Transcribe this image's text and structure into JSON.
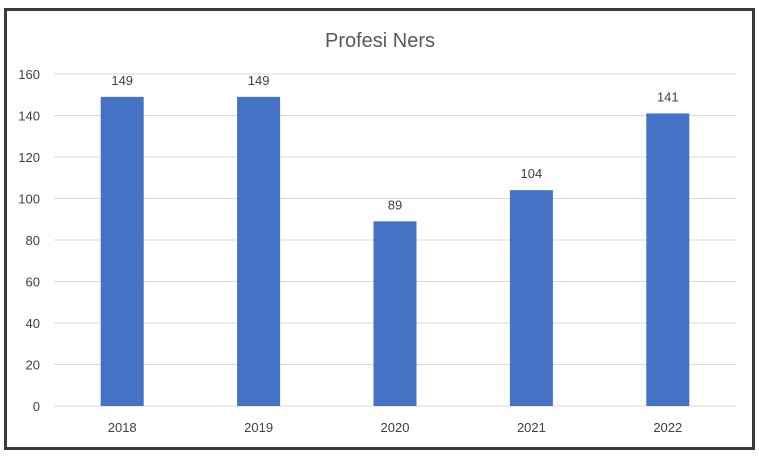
{
  "chart_data": {
    "type": "bar",
    "title": "Profesi Ners",
    "categories": [
      "2018",
      "2019",
      "2020",
      "2021",
      "2022"
    ],
    "values": [
      149,
      149,
      89,
      104,
      141
    ],
    "data_labels": [
      "149",
      "149",
      "89",
      "104",
      "141"
    ],
    "ylim": [
      0,
      160
    ],
    "yticks": [
      0,
      20,
      40,
      60,
      80,
      100,
      120,
      140,
      160
    ],
    "grid": true,
    "legend": "none",
    "bar_color": "#4472C4",
    "grid_color": "#d9d9d9"
  }
}
